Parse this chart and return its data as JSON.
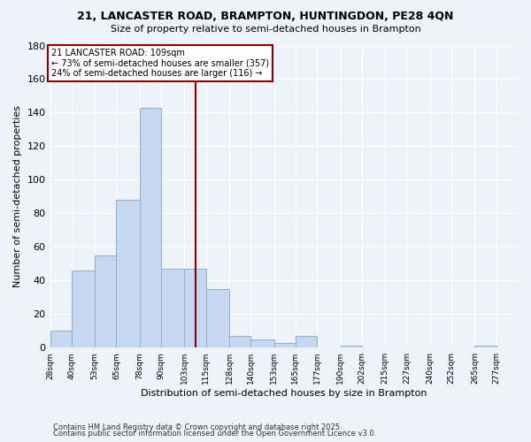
{
  "title_line1": "21, LANCASTER ROAD, BRAMPTON, HUNTINGDON, PE28 4QN",
  "title_line2": "Size of property relative to semi-detached houses in Brampton",
  "xlabel": "Distribution of semi-detached houses by size in Brampton",
  "ylabel": "Number of semi-detached properties",
  "footnote_line1": "Contains HM Land Registry data © Crown copyright and database right 2025.",
  "footnote_line2": "Contains public sector information licensed under the Open Government Licence v3.0.",
  "property_size": 109,
  "property_label": "21 LANCASTER ROAD: 109sqm",
  "annotation_line1": "← 73% of semi-detached houses are smaller (357)",
  "annotation_line2": "24% of semi-detached houses are larger (116) →",
  "bin_edges": [
    28,
    40,
    53,
    65,
    78,
    90,
    103,
    115,
    128,
    140,
    153,
    165,
    177,
    190,
    202,
    215,
    227,
    240,
    252,
    265,
    277
  ],
  "bar_heights": [
    10,
    46,
    55,
    88,
    143,
    47,
    47,
    35,
    7,
    5,
    3,
    7,
    0,
    1,
    0,
    0,
    0,
    0,
    0,
    1
  ],
  "bar_color": "#c5d8f0",
  "bar_edge_color": "#8ab0d0",
  "vline_color": "#8b0000",
  "annotation_box_color": "#8b0000",
  "ylim": [
    0,
    180
  ],
  "background_color": "#eef2f9",
  "grid_color": "#ffffff",
  "tick_labels": [
    "28sqm",
    "40sqm",
    "53sqm",
    "65sqm",
    "78sqm",
    "90sqm",
    "103sqm",
    "115sqm",
    "128sqm",
    "140sqm",
    "153sqm",
    "165sqm",
    "177sqm",
    "190sqm",
    "202sqm",
    "215sqm",
    "227sqm",
    "240sqm",
    "252sqm",
    "265sqm",
    "277sqm"
  ]
}
